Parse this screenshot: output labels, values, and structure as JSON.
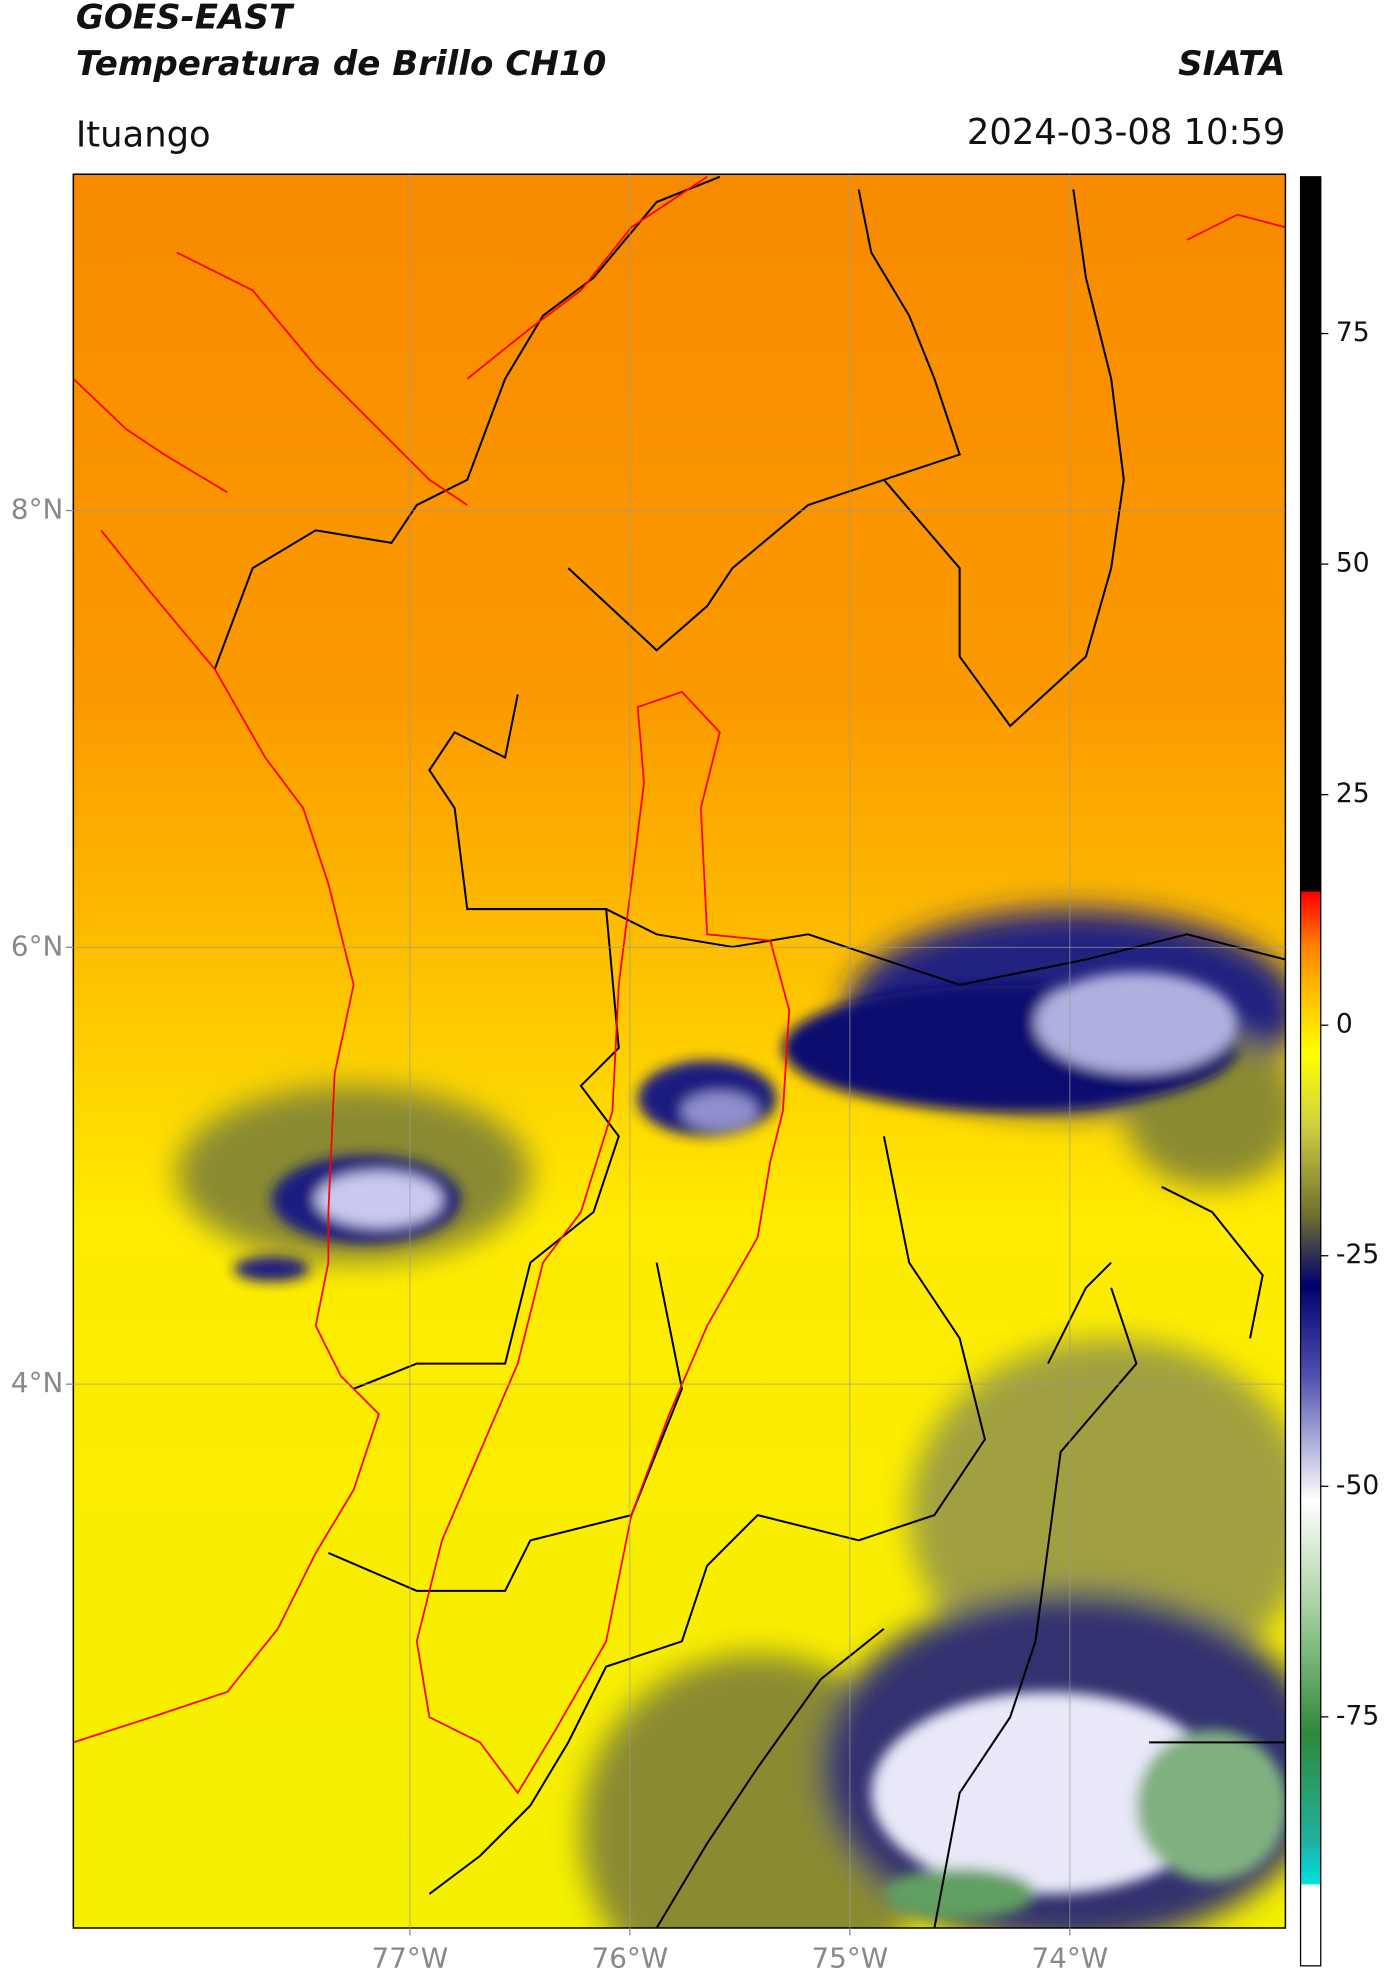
{
  "header": {
    "title": "GOES-EAST",
    "subtitle": "Temperatura de Brillo CH10",
    "brand": "SIATA",
    "location": "Ituango",
    "datetime": "2024-03-08 10:59"
  },
  "map": {
    "xlim": [
      -78.53,
      -73.02
    ],
    "ylim": [
      1.51,
      9.54
    ],
    "xticks": [
      {
        "value": -77,
        "label": "77°W"
      },
      {
        "value": -76,
        "label": "76°W"
      },
      {
        "value": -75,
        "label": "75°W"
      },
      {
        "value": -74,
        "label": "74°W"
      }
    ],
    "yticks": [
      {
        "value": 8,
        "label": "8°N"
      },
      {
        "value": 6,
        "label": "6°N"
      },
      {
        "value": 4,
        "label": "4°N"
      }
    ],
    "grid": true
  },
  "colorbar": {
    "lim": [
      -102,
      92
    ],
    "ticks": [
      75,
      50,
      25,
      0,
      -25,
      -50,
      -75
    ]
  }
}
